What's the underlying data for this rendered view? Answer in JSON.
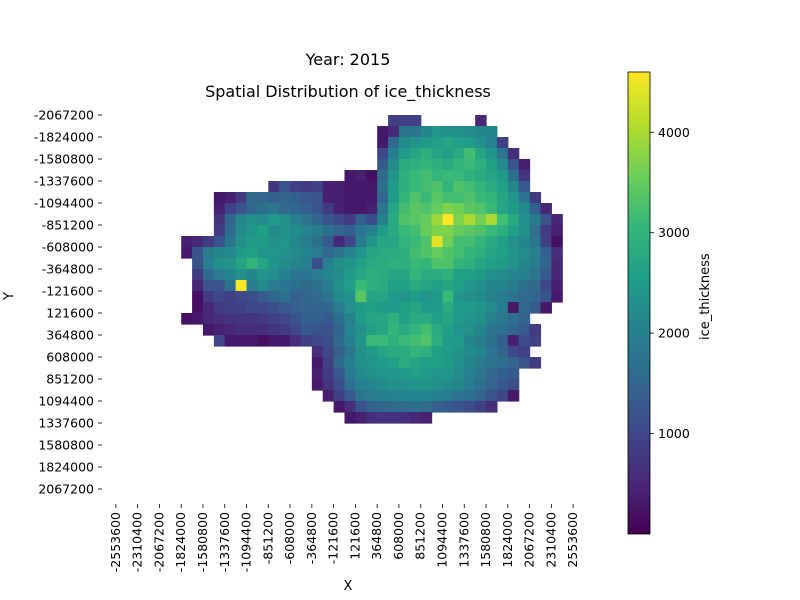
{
  "figure": {
    "suptitle": "Year: 2015"
  },
  "colors": {
    "cmap": "viridis",
    "viridis_stops": [
      "#440154",
      "#482878",
      "#3e4989",
      "#31688e",
      "#26828e",
      "#1f9e89",
      "#35b779",
      "#6ece58",
      "#b5de2b",
      "#fde725"
    ]
  },
  "chart_data": {
    "type": "heatmap",
    "title": "Spatial Distribution of ice_thickness",
    "xlabel": "X",
    "ylabel": "Y",
    "colorbar_label": "ice_thickness",
    "colorbar_ticks": [
      1000,
      2000,
      3000,
      4000
    ],
    "value_range": [
      0,
      4600
    ],
    "x_ticks": [
      "-2553600",
      "-2310400",
      "-2067200",
      "-1824000",
      "-1580800",
      "-1337600",
      "-1094400",
      "-851200",
      "-608000",
      "-364800",
      "-121600",
      "121600",
      "364800",
      "608000",
      "851200",
      "1094400",
      "1337600",
      "1580800",
      "1824000",
      "2067200",
      "2310400",
      "2553600"
    ],
    "y_ticks": [
      "-2067200",
      "-1824000",
      "-1580800",
      "-1337600",
      "-1094400",
      "-851200",
      "-608000",
      "-364800",
      "-121600",
      "121600",
      "364800",
      "608000",
      "851200",
      "1094400",
      "1337600",
      "1580800",
      "1824000",
      "2067200"
    ],
    "grid": false,
    "colorbar_placement": "right",
    "cell_spacing_m": 121600,
    "x_cells_range_m": [
      -2675200,
      2675200
    ],
    "y_cells_range_m": [
      -2188800,
      2188800
    ],
    "rows": [
      [],
      [
        0,
        0,
        0,
        0,
        0,
        0,
        0,
        0,
        0,
        0,
        0,
        0,
        0,
        0,
        0,
        0,
        0,
        0,
        0,
        0,
        0,
        0,
        0,
        0,
        0,
        0,
        900,
        900,
        900,
        0,
        0,
        0,
        0,
        0,
        500,
        0,
        0,
        0,
        0,
        0,
        0,
        0,
        0,
        0,
        0,
        0
      ],
      [
        0,
        0,
        0,
        0,
        0,
        0,
        0,
        0,
        0,
        0,
        0,
        0,
        0,
        0,
        0,
        0,
        0,
        0,
        0,
        0,
        0,
        0,
        0,
        0,
        0,
        300,
        500,
        1800,
        1800,
        2100,
        2400,
        2300,
        2300,
        2200,
        2100,
        2100,
        0,
        0,
        0,
        0,
        0,
        0,
        0,
        0,
        0,
        0
      ],
      [
        0,
        0,
        0,
        0,
        0,
        0,
        0,
        0,
        0,
        0,
        0,
        0,
        0,
        0,
        0,
        0,
        0,
        0,
        0,
        0,
        0,
        0,
        0,
        0,
        0,
        300,
        1600,
        2200,
        2400,
        2500,
        2600,
        2700,
        2600,
        2500,
        2300,
        2000,
        900,
        0,
        0,
        0,
        0,
        0,
        0,
        0,
        0,
        0
      ],
      [
        0,
        0,
        0,
        0,
        0,
        0,
        0,
        0,
        0,
        0,
        0,
        0,
        0,
        0,
        0,
        0,
        0,
        0,
        0,
        0,
        0,
        0,
        0,
        0,
        0,
        1000,
        2000,
        2500,
        2700,
        2900,
        2700,
        2600,
        2800,
        3200,
        2700,
        2400,
        1800,
        600,
        0,
        0,
        0,
        0,
        0,
        0,
        0,
        0
      ],
      [
        0,
        0,
        0,
        0,
        0,
        0,
        0,
        0,
        0,
        0,
        0,
        0,
        0,
        0,
        0,
        0,
        0,
        0,
        0,
        0,
        0,
        0,
        0,
        0,
        0,
        1300,
        2200,
        2800,
        2900,
        3000,
        2900,
        2800,
        3000,
        3100,
        2900,
        2600,
        2200,
        1200,
        400,
        0,
        0,
        0,
        0,
        0,
        0,
        0
      ],
      [
        0,
        0,
        0,
        0,
        0,
        0,
        0,
        0,
        0,
        0,
        0,
        0,
        0,
        0,
        0,
        0,
        0,
        0,
        0,
        0,
        0,
        0,
        300,
        400,
        200,
        1600,
        2400,
        2900,
        3100,
        3200,
        3000,
        3100,
        3100,
        2900,
        2800,
        2700,
        2500,
        1700,
        700,
        0,
        0,
        0,
        0,
        0,
        0,
        0
      ],
      [
        0,
        0,
        0,
        0,
        0,
        0,
        0,
        0,
        0,
        0,
        0,
        0,
        0,
        0,
        0,
        700,
        1200,
        900,
        800,
        900,
        400,
        400,
        300,
        300,
        300,
        1700,
        2500,
        2900,
        3100,
        3200,
        3300,
        3000,
        3300,
        3200,
        3000,
        2800,
        2600,
        2100,
        1300,
        0,
        0,
        0,
        0,
        0,
        0,
        0
      ],
      [
        0,
        0,
        0,
        0,
        0,
        0,
        0,
        0,
        0,
        0,
        300,
        400,
        800,
        1600,
        1500,
        1400,
        1500,
        1400,
        1300,
        1200,
        400,
        400,
        300,
        300,
        300,
        1500,
        2500,
        3000,
        3300,
        3100,
        3400,
        3200,
        3200,
        3300,
        3100,
        3000,
        2700,
        2400,
        1800,
        800,
        0,
        0,
        0,
        0,
        0,
        0
      ],
      [
        0,
        0,
        0,
        0,
        0,
        0,
        0,
        0,
        0,
        0,
        400,
        900,
        1200,
        1500,
        1700,
        1800,
        1600,
        1500,
        1400,
        1200,
        800,
        400,
        300,
        300,
        400,
        1800,
        2700,
        3200,
        3400,
        3300,
        3500,
        3700,
        3600,
        3400,
        3300,
        3100,
        2700,
        2500,
        2200,
        1400,
        500,
        0,
        0,
        0,
        0,
        0
      ],
      [
        0,
        0,
        0,
        0,
        0,
        0,
        0,
        0,
        0,
        0,
        700,
        1500,
        2100,
        2300,
        2200,
        2500,
        2300,
        2000,
        1800,
        1500,
        1200,
        1000,
        800,
        1400,
        1100,
        2000,
        2800,
        3300,
        3400,
        3500,
        3900,
        4600,
        3700,
        4000,
        3600,
        4000,
        3200,
        2800,
        2300,
        1900,
        1200,
        500,
        0,
        0,
        0,
        0
      ],
      [
        0,
        0,
        0,
        0,
        0,
        0,
        0,
        0,
        0,
        0,
        800,
        1600,
        2200,
        2400,
        2600,
        2200,
        2300,
        2200,
        2100,
        1900,
        1700,
        1500,
        1400,
        1800,
        2000,
        2500,
        2800,
        3100,
        3200,
        3500,
        3700,
        3700,
        3500,
        3400,
        3300,
        3100,
        2900,
        2600,
        2300,
        1700,
        800,
        400,
        0,
        0,
        0,
        0
      ],
      [
        0,
        0,
        0,
        0,
        0,
        0,
        0,
        400,
        500,
        800,
        1200,
        1800,
        2300,
        2500,
        2500,
        2300,
        2400,
        2100,
        1900,
        1700,
        1300,
        500,
        1000,
        1900,
        2400,
        2700,
        2700,
        3000,
        3100,
        3300,
        4400,
        3600,
        3200,
        3200,
        3000,
        2800,
        2600,
        2300,
        2100,
        1800,
        900,
        200,
        0,
        0,
        0,
        0
      ],
      [
        0,
        0,
        0,
        0,
        0,
        0,
        0,
        300,
        1200,
        1900,
        2100,
        2200,
        2500,
        2600,
        2400,
        2400,
        2300,
        2200,
        2100,
        1900,
        1600,
        1800,
        2100,
        2400,
        2700,
        2800,
        2800,
        2900,
        3200,
        3300,
        3500,
        3300,
        3200,
        3000,
        2900,
        2700,
        2600,
        2400,
        2200,
        2000,
        1400,
        600,
        0,
        0,
        0,
        0
      ],
      [
        0,
        0,
        0,
        0,
        0,
        0,
        0,
        0,
        1200,
        2000,
        2300,
        2400,
        2700,
        3000,
        2700,
        2400,
        2200,
        2100,
        2000,
        1100,
        2000,
        2300,
        2400,
        2600,
        2800,
        2800,
        2900,
        2900,
        3100,
        3000,
        3300,
        3300,
        3000,
        2900,
        2700,
        2600,
        2500,
        2300,
        2100,
        1900,
        1500,
        500,
        0,
        0,
        0,
        0
      ],
      [
        0,
        0,
        0,
        0,
        0,
        0,
        0,
        0,
        800,
        1600,
        1900,
        2100,
        2300,
        2100,
        2400,
        2300,
        2000,
        1800,
        1800,
        1900,
        2100,
        2200,
        2500,
        2700,
        2900,
        2800,
        2700,
        2700,
        3000,
        2800,
        2800,
        2900,
        2600,
        2600,
        2500,
        2300,
        2200,
        2100,
        2000,
        1800,
        1300,
        500,
        0,
        0,
        0,
        0
      ],
      [
        0,
        0,
        0,
        0,
        0,
        0,
        0,
        0,
        500,
        1200,
        1200,
        1700,
        4600,
        1900,
        2200,
        1900,
        1800,
        1700,
        1600,
        1700,
        1900,
        2300,
        2600,
        3100,
        2900,
        2800,
        2600,
        2600,
        2800,
        2700,
        2600,
        2700,
        2600,
        2400,
        2300,
        2100,
        2100,
        1900,
        1700,
        1600,
        1000,
        400,
        0,
        0,
        0,
        0
      ],
      [
        0,
        0,
        0,
        0,
        0,
        0,
        0,
        0,
        200,
        800,
        1000,
        900,
        1000,
        1100,
        1300,
        1500,
        1700,
        1400,
        1500,
        1600,
        1800,
        2200,
        2400,
        3400,
        2700,
        2700,
        2500,
        2400,
        2500,
        2400,
        2500,
        3100,
        2400,
        2300,
        2200,
        2000,
        1900,
        1800,
        1600,
        1500,
        1200,
        300,
        0,
        0,
        0,
        0
      ],
      [
        0,
        0,
        0,
        0,
        0,
        0,
        0,
        0,
        200,
        500,
        800,
        900,
        900,
        1000,
        1000,
        1100,
        1300,
        1400,
        1500,
        1500,
        1500,
        1900,
        2300,
        2500,
        2600,
        2500,
        2500,
        2600,
        2700,
        2500,
        2500,
        2800,
        2500,
        2500,
        2400,
        2200,
        1900,
        300,
        1600,
        1300,
        300,
        0,
        0,
        0,
        0,
        0
      ],
      [
        0,
        0,
        0,
        0,
        0,
        0,
        0,
        200,
        300,
        500,
        600,
        700,
        700,
        700,
        800,
        900,
        1000,
        1200,
        1400,
        1400,
        1300,
        1700,
        2000,
        2500,
        2700,
        2700,
        2900,
        2600,
        2800,
        2800,
        2600,
        2700,
        2500,
        2400,
        2300,
        2000,
        1800,
        1700,
        1500,
        0,
        0,
        0,
        0,
        0,
        0,
        0
      ],
      [
        0,
        0,
        0,
        0,
        0,
        0,
        0,
        0,
        0,
        300,
        400,
        500,
        600,
        600,
        600,
        700,
        800,
        1000,
        1300,
        1200,
        1200,
        1500,
        2100,
        2300,
        2600,
        2700,
        3000,
        2800,
        3000,
        3200,
        2800,
        2600,
        2400,
        2300,
        2100,
        1800,
        1700,
        1500,
        1300,
        800,
        0,
        0,
        0,
        0,
        0,
        0
      ],
      [
        0,
        0,
        0,
        0,
        0,
        0,
        0,
        0,
        0,
        0,
        1000,
        300,
        300,
        300,
        200,
        300,
        300,
        600,
        900,
        1000,
        1100,
        1600,
        2000,
        2400,
        3100,
        3100,
        2900,
        3100,
        3200,
        3300,
        2900,
        2500,
        2500,
        2100,
        1900,
        1700,
        1400,
        400,
        1100,
        900,
        0,
        0,
        0,
        0,
        0,
        0
      ],
      [
        0,
        0,
        0,
        0,
        0,
        0,
        0,
        0,
        0,
        0,
        0,
        0,
        0,
        0,
        0,
        0,
        0,
        0,
        0,
        600,
        1000,
        1400,
        1800,
        2300,
        2500,
        2700,
        2800,
        2800,
        3000,
        2900,
        2600,
        2500,
        2400,
        2200,
        2100,
        1800,
        1500,
        1000,
        900,
        0,
        0,
        0,
        0,
        0,
        0,
        0
      ],
      [
        0,
        0,
        0,
        0,
        0,
        0,
        0,
        0,
        0,
        0,
        0,
        0,
        0,
        0,
        0,
        0,
        0,
        0,
        0,
        300,
        900,
        1600,
        2000,
        2300,
        2400,
        2500,
        2600,
        2800,
        2700,
        2600,
        2600,
        2500,
        2300,
        2100,
        1900,
        1800,
        1700,
        1500,
        1200,
        800,
        0,
        0,
        0,
        0,
        0,
        0
      ],
      [
        0,
        0,
        0,
        0,
        0,
        0,
        0,
        0,
        0,
        0,
        0,
        0,
        0,
        0,
        0,
        0,
        0,
        0,
        0,
        400,
        800,
        1300,
        1900,
        2200,
        2300,
        2400,
        2400,
        2500,
        2600,
        2500,
        2400,
        2400,
        2200,
        2000,
        1800,
        1600,
        1400,
        1300,
        0,
        0,
        0,
        0,
        0,
        0,
        0,
        0
      ],
      [
        0,
        0,
        0,
        0,
        0,
        0,
        0,
        0,
        0,
        0,
        0,
        0,
        0,
        0,
        0,
        0,
        0,
        0,
        0,
        300,
        700,
        1100,
        1700,
        2000,
        2100,
        2200,
        2300,
        2300,
        2400,
        2400,
        2300,
        2200,
        2100,
        1900,
        1700,
        1500,
        1300,
        1100,
        0,
        0,
        0,
        0,
        0,
        0,
        0,
        0
      ],
      [
        0,
        0,
        0,
        0,
        0,
        0,
        0,
        0,
        0,
        0,
        0,
        0,
        0,
        0,
        0,
        0,
        0,
        0,
        0,
        0,
        400,
        900,
        1300,
        1800,
        1900,
        2000,
        2000,
        2100,
        2100,
        2100,
        2000,
        1900,
        1800,
        1700,
        1500,
        1200,
        1000,
        300,
        0,
        0,
        0,
        0,
        0,
        0,
        0,
        0
      ],
      [
        0,
        0,
        0,
        0,
        0,
        0,
        0,
        0,
        0,
        0,
        0,
        0,
        0,
        0,
        0,
        0,
        0,
        0,
        0,
        0,
        0,
        300,
        600,
        1200,
        1400,
        1500,
        1600,
        1600,
        1700,
        1600,
        1400,
        1300,
        1200,
        1100,
        900,
        600,
        0,
        0,
        0,
        0,
        0,
        0,
        0,
        0,
        0,
        0
      ],
      [
        0,
        0,
        0,
        0,
        0,
        0,
        0,
        0,
        0,
        0,
        0,
        0,
        0,
        0,
        0,
        0,
        0,
        0,
        0,
        0,
        0,
        0,
        300,
        400,
        600,
        700,
        700,
        600,
        500,
        400,
        0,
        0,
        0,
        0,
        0,
        0,
        0,
        0,
        0,
        0,
        0,
        0,
        0,
        0,
        0,
        0
      ]
    ]
  }
}
